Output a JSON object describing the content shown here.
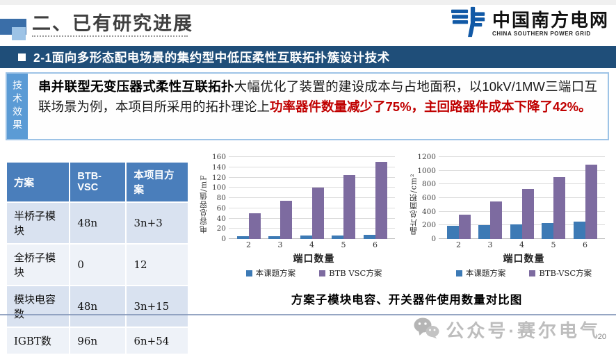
{
  "page": {
    "title": "二、已有研究进展",
    "page_number": "20"
  },
  "logo": {
    "name_cn": "中国南方电网",
    "name_en": "CHINA SOUTHERN POWER GRID",
    "brand_color": "#1159a6"
  },
  "banner": {
    "title": "2-1面向多形态配电场景的集约型中低压柔性互联拓扑簇设计技术"
  },
  "tech_effect": {
    "label": "技术效果",
    "lead_bold": "串并联型无变压器式柔性互联拓扑",
    "body": "大幅优化了装置的建设成本与占地面积，以10kV/1MW三端口互联场景为例，本项目所采用的拓扑理论上",
    "highlight_red": "功率器件数量减少了75%，主回路器件成本下降了42%。"
  },
  "table": {
    "headers": [
      "方案",
      "BTB-VSC",
      "本项目方案"
    ],
    "rows": [
      [
        "半桥子模块",
        "48n",
        "3n+3"
      ],
      [
        "全桥子模块",
        "0",
        "12"
      ],
      [
        "模块电容数",
        "48n",
        "3n+15"
      ],
      [
        "IGBT数",
        "96n",
        "6n+54"
      ]
    ]
  },
  "chart_data": [
    {
      "type": "bar",
      "categories": [
        "2",
        "3",
        "4",
        "5",
        "6"
      ],
      "series": [
        {
          "name": "本课题方案",
          "color": "#3d7ab5",
          "values": [
            6,
            6,
            7,
            7,
            8
          ]
        },
        {
          "name": "BTB VSC方案",
          "color": "#7d6ba0",
          "values": [
            50,
            75,
            100,
            125,
            150
          ]
        }
      ],
      "title": "",
      "xlabel": "端口数量",
      "ylabel": "电容总容值/mF",
      "ylim": [
        0,
        160
      ],
      "ytick_step": 20,
      "grid": true,
      "legend_position": "bottom"
    },
    {
      "type": "bar",
      "categories": [
        "2",
        "3",
        "4",
        "5",
        "6"
      ],
      "series": [
        {
          "name": "本课题方案",
          "color": "#3d7ab5",
          "values": [
            190,
            205,
            215,
            235,
            250
          ]
        },
        {
          "name": "BTB-VSC方案",
          "color": "#7d6ba0",
          "values": [
            360,
            545,
            730,
            910,
            1090
          ]
        }
      ],
      "title": "",
      "xlabel": "端口数量",
      "ylabel": "晶片总面积/cm²",
      "ylim": [
        0,
        1200
      ],
      "ytick_step": 200,
      "grid": true,
      "legend_position": "bottom"
    }
  ],
  "caption": "方案子模块电容、开关器件使用数量对比图",
  "watermark": {
    "icon": "wechat-icon",
    "text": "公众号·赛尔电气"
  },
  "colors": {
    "banner_bg": "#1f4e79",
    "table_header_bg": "#4a7ebb",
    "tab_bg": "#5b9bd5",
    "box_border": "#9dc3e6",
    "accent_red": "#c00000",
    "bar_blue": "#3d7ab5",
    "bar_purple": "#7d6ba0",
    "footer_line": "#8496b8"
  }
}
